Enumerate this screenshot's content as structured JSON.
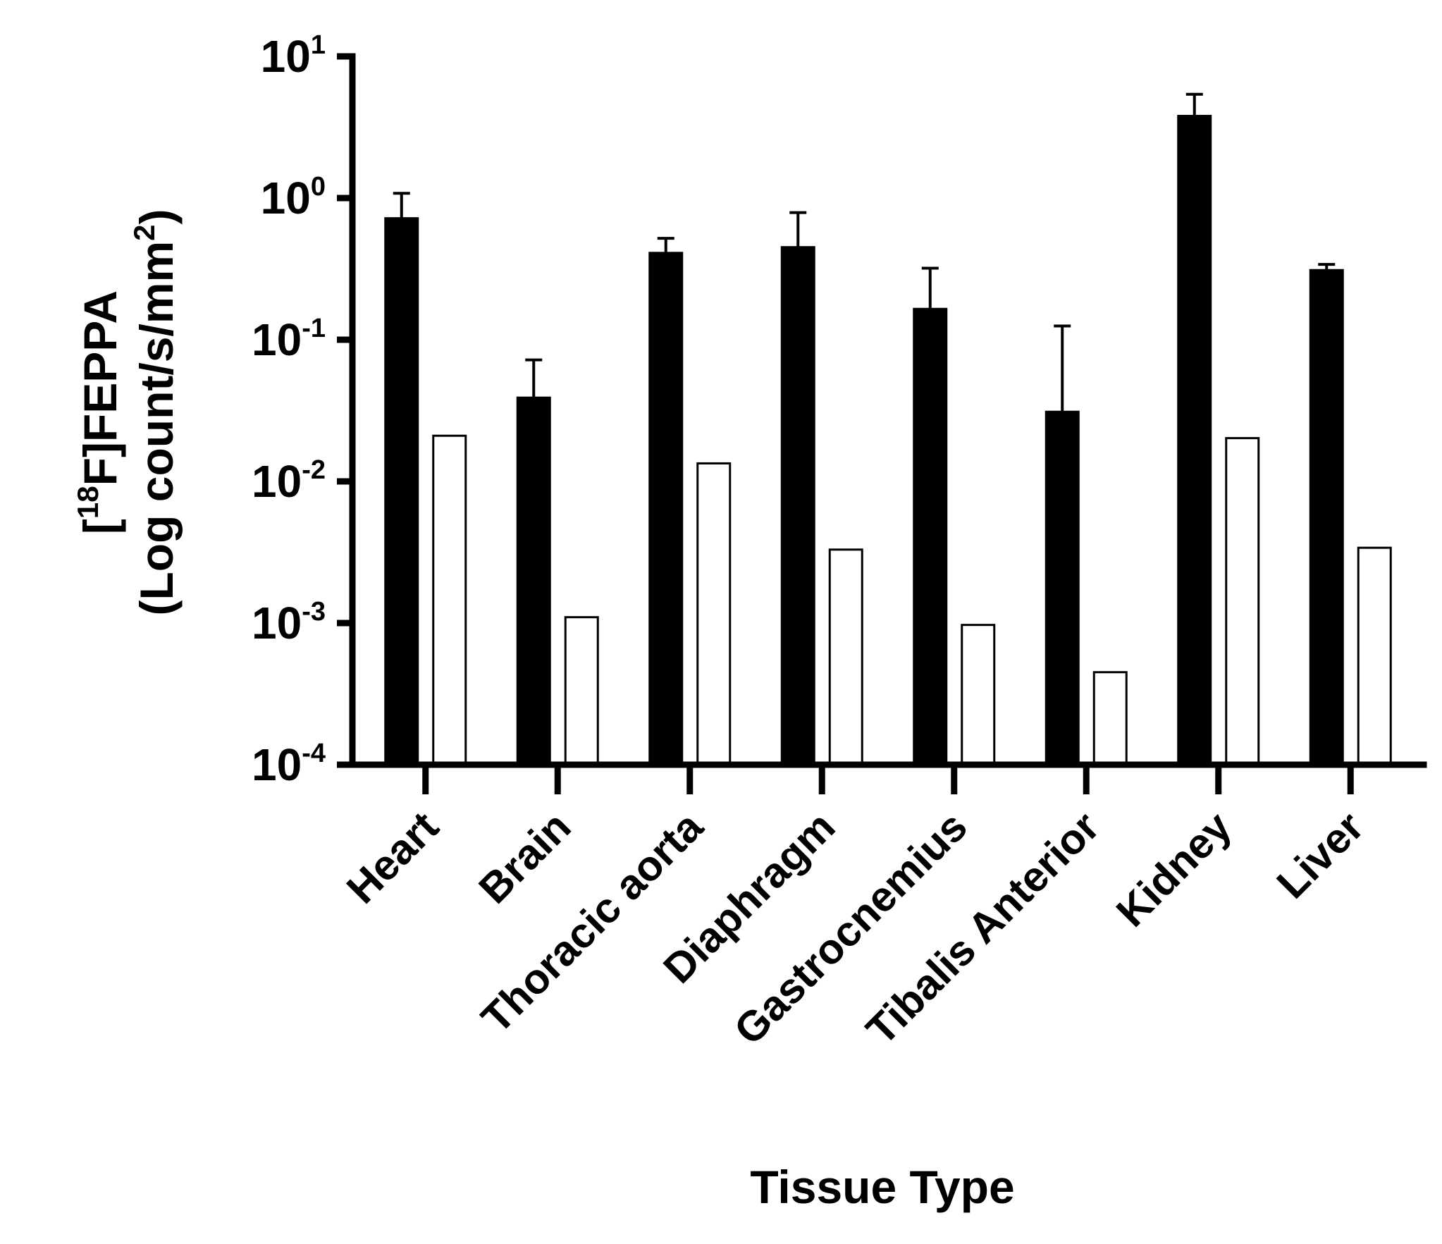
{
  "chart_data": {
    "type": "bar",
    "yscale": "log",
    "ylim": [
      0.0001,
      10
    ],
    "grid": false,
    "legend": "none",
    "xlabel": "Tissue Type",
    "ylabel": {
      "line1_prefix": "[",
      "line1_sup": "18",
      "line1_main": "F]FEPPA",
      "line2_main": "(Log count/s/mm",
      "line2_sup": "2",
      "line2_end": ")"
    },
    "y_ticks": [
      {
        "value": 10,
        "base": "10",
        "exp": "1"
      },
      {
        "value": 1,
        "base": "10",
        "exp": "0"
      },
      {
        "value": 0.1,
        "base": "10",
        "exp": "-1"
      },
      {
        "value": 0.01,
        "base": "10",
        "exp": "-2"
      },
      {
        "value": 0.001,
        "base": "10",
        "exp": "-3"
      },
      {
        "value": 0.0001,
        "base": "10",
        "exp": "-4"
      }
    ],
    "categories": [
      "Heart",
      "Brain",
      "Thoracic aorta",
      "Diaphragm",
      "Gastrocnemius",
      "Tibalis Anterior",
      "Kidney",
      "Liver"
    ],
    "series": [
      {
        "fill": "#000000",
        "values": [
          0.72,
          0.039,
          0.41,
          0.45,
          0.165,
          0.031,
          3.8,
          0.31
        ],
        "error_upper": [
          1.08,
          0.072,
          0.52,
          0.79,
          0.32,
          0.125,
          5.4,
          0.34
        ]
      },
      {
        "fill": "#ffffff",
        "values": [
          0.021,
          0.0011,
          0.0134,
          0.0033,
          0.00097,
          0.00045,
          0.0202,
          0.0034
        ]
      }
    ]
  }
}
